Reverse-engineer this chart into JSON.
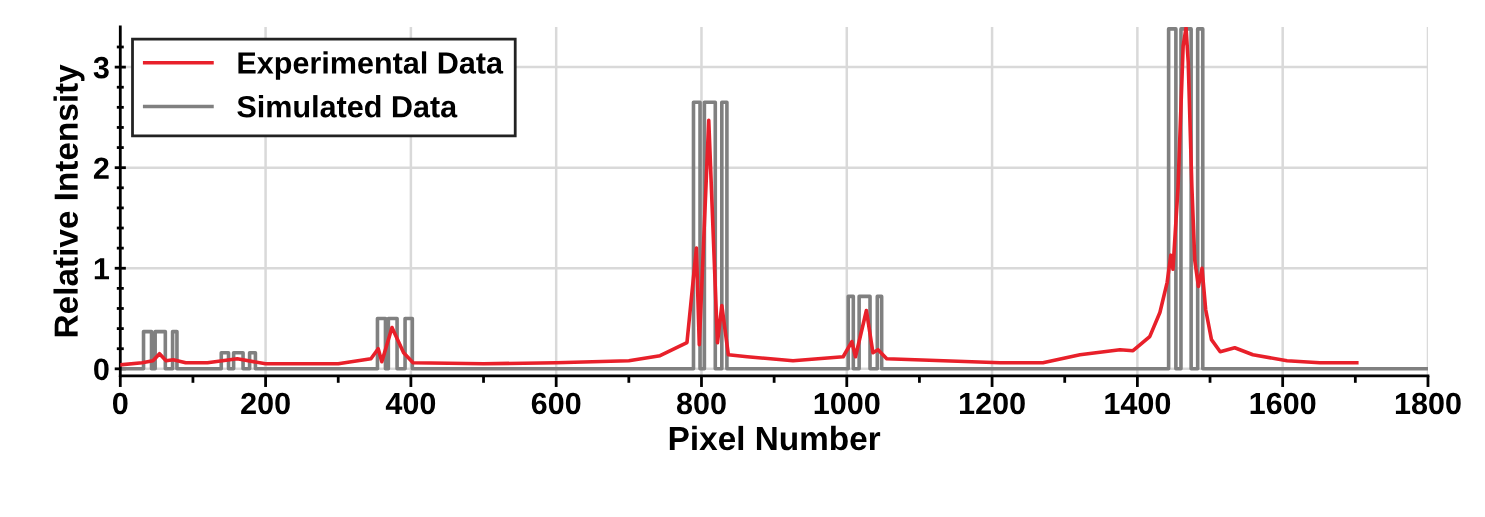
{
  "chart_data": {
    "type": "line",
    "xlabel": "Pixel Number",
    "ylabel": "Relative Intensity",
    "xlim": [
      0,
      1800
    ],
    "ylim": [
      -0.07,
      3.4
    ],
    "xticks": [
      0,
      {
        "value": 100,
        "label": null
      },
      200,
      {
        "value": 300,
        "label": null
      },
      400,
      {
        "value": 500,
        "label": null
      },
      600,
      {
        "value": 700,
        "label": null
      },
      800,
      {
        "value": 900,
        "label": null
      },
      1000,
      {
        "value": 1100,
        "label": null
      },
      1200,
      {
        "value": 1300,
        "label": null
      },
      1400,
      {
        "value": 1500,
        "label": null
      },
      1600,
      {
        "value": 1700,
        "label": null
      },
      1800
    ],
    "yticks": [
      0,
      {
        "value": 0.2,
        "label": null
      },
      {
        "value": 0.4,
        "label": null
      },
      {
        "value": 0.6,
        "label": null
      },
      {
        "value": 0.8,
        "label": null
      },
      1,
      {
        "value": 1.2,
        "label": null
      },
      {
        "value": 1.4,
        "label": null
      },
      {
        "value": 1.6,
        "label": null
      },
      {
        "value": 1.8,
        "label": null
      },
      2,
      {
        "value": 2.2,
        "label": null
      },
      {
        "value": 2.4,
        "label": null
      },
      {
        "value": 2.6,
        "label": null
      },
      {
        "value": 2.8,
        "label": null
      },
      3,
      {
        "value": 3.2,
        "label": null
      }
    ],
    "grid": true,
    "legend": "top left",
    "marker": "none",
    "line_style": "solid",
    "series": [
      {
        "name": "Experimental Data",
        "color": "#e8202a",
        "x": [
          0,
          30,
          45,
          54,
          63,
          73,
          90,
          120,
          161,
          200,
          300,
          345,
          355,
          360,
          374,
          390,
          403,
          500,
          600,
          700,
          743,
          780,
          793,
          797,
          810,
          822,
          828,
          837,
          863,
          926,
          995,
          1007,
          1012,
          1027,
          1036,
          1043,
          1055,
          1211,
          1270,
          1321,
          1376,
          1394,
          1417,
          1431,
          1441,
          1446,
          1449,
          1456,
          1463,
          1467,
          1470,
          1475,
          1479,
          1484,
          1489,
          1494,
          1502,
          1514,
          1534,
          1559,
          1606,
          1651,
          1702
        ],
        "values": [
          0.04,
          0.06,
          0.08,
          0.15,
          0.08,
          0.09,
          0.06,
          0.06,
          0.1,
          0.05,
          0.05,
          0.1,
          0.2,
          0.07,
          0.41,
          0.16,
          0.06,
          0.05,
          0.06,
          0.08,
          0.13,
          0.26,
          1.2,
          0.24,
          2.47,
          0.26,
          0.63,
          0.14,
          0.12,
          0.08,
          0.12,
          0.27,
          0.12,
          0.58,
          0.16,
          0.19,
          0.1,
          0.06,
          0.06,
          0.14,
          0.19,
          0.18,
          0.32,
          0.56,
          0.86,
          1.13,
          0.99,
          1.81,
          3.21,
          3.39,
          3.05,
          1.81,
          1.08,
          0.82,
          1.0,
          0.59,
          0.29,
          0.17,
          0.21,
          0.14,
          0.08,
          0.06,
          0.06
        ]
      },
      {
        "name": "Simulated Data",
        "color": "#808080",
        "x": [
          0,
          32,
          32,
          43,
          43,
          48,
          48,
          62,
          62,
          72,
          72,
          78,
          78,
          139,
          139,
          149,
          149,
          156,
          156,
          169,
          169,
          178,
          178,
          186,
          186,
          354,
          354,
          365,
          365,
          369,
          369,
          381,
          381,
          392,
          392,
          402,
          402,
          789,
          789,
          798,
          798,
          804,
          804,
          819,
          819,
          828,
          828,
          835,
          835,
          1002,
          1002,
          1009,
          1009,
          1017,
          1017,
          1032,
          1032,
          1042,
          1042,
          1048,
          1048,
          1443,
          1443,
          1453,
          1453,
          1460,
          1460,
          1474,
          1474,
          1483,
          1483,
          1490,
          1490,
          1800
        ],
        "values": [
          0,
          0,
          0.37,
          0.37,
          0,
          0,
          0.37,
          0.37,
          0,
          0,
          0.37,
          0.37,
          0,
          0,
          0.16,
          0.16,
          0,
          0,
          0.16,
          0.16,
          0,
          0,
          0.16,
          0.16,
          0,
          0,
          0.5,
          0.5,
          0,
          0,
          0.5,
          0.5,
          0,
          0,
          0.5,
          0.5,
          0,
          0,
          2.65,
          2.65,
          0,
          0,
          2.65,
          2.65,
          0,
          0,
          2.65,
          2.65,
          0,
          0,
          0.72,
          0.72,
          0,
          0,
          0.72,
          0.72,
          0,
          0,
          0.72,
          0.72,
          0,
          0,
          3.38,
          3.38,
          0,
          0,
          3.38,
          3.38,
          0,
          0,
          3.38,
          3.38,
          0,
          0
        ]
      }
    ]
  }
}
